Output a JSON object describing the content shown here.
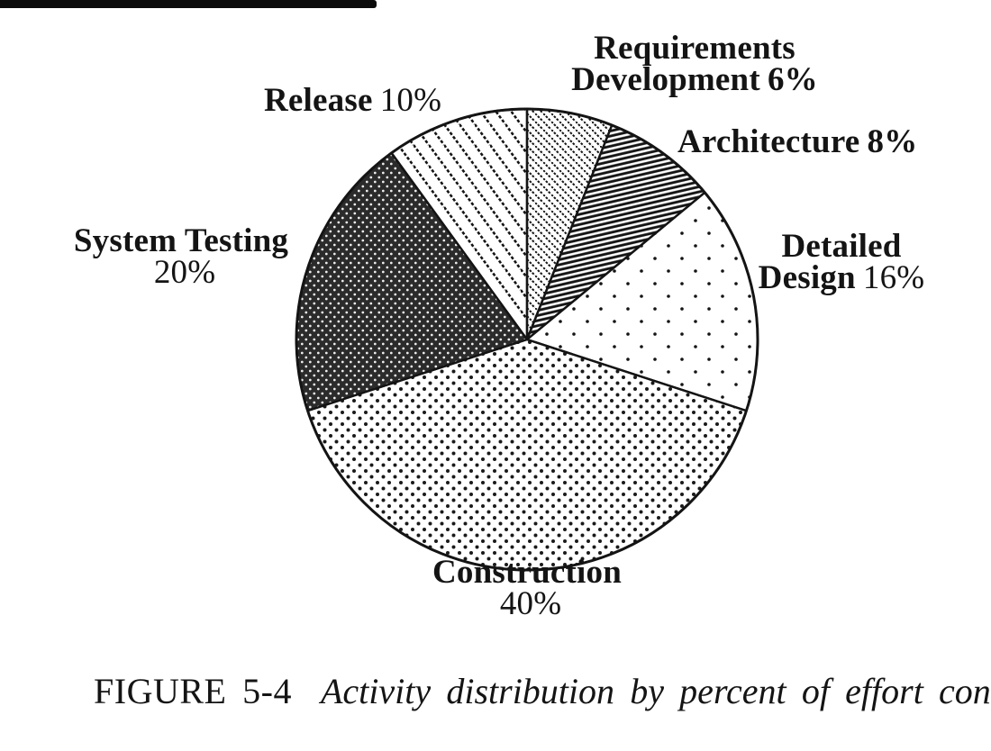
{
  "figure": {
    "caption_label": "FIGURE 5-4",
    "caption_text": "Activity distribution by percent of effort consumed."
  },
  "chart_data": {
    "type": "pie",
    "title": "Activity distribution by percent of effort consumed",
    "unit": "percent of effort",
    "start_angle_deg": -90,
    "direction": "clockwise",
    "total": 100,
    "segments": [
      {
        "id": "requirements-development",
        "label": "Requirements Development",
        "value": 6,
        "pct": "6%",
        "pattern": "diagonal-thin"
      },
      {
        "id": "architecture",
        "label": "Architecture",
        "value": 8,
        "pct": "8%",
        "pattern": "dense-stripes"
      },
      {
        "id": "detailed-design",
        "label": "Detailed Design",
        "value": 16,
        "pct": "16%",
        "pattern": "sparse-dots"
      },
      {
        "id": "construction",
        "label": "Construction",
        "value": 40,
        "pct": "40%",
        "pattern": "medium-dots"
      },
      {
        "id": "system-testing",
        "label": "System Testing",
        "value": 20,
        "pct": "20%",
        "pattern": "dark-crosshatch"
      },
      {
        "id": "release",
        "label": "Release",
        "value": 10,
        "pct": "10%",
        "pattern": "diagonal-wide"
      }
    ]
  },
  "labels": {
    "requirements": {
      "line1": "Requirements",
      "line2": "Development"
    },
    "architecture": {
      "name": "Architecture"
    },
    "detailed_design": {
      "line1": "Detailed",
      "line2": "Design"
    },
    "construction": {
      "name": "Construction"
    },
    "system_testing": {
      "name": "System Testing"
    },
    "release": {
      "name": "Release"
    }
  },
  "colors": {
    "ink": "#141414",
    "paper": "#ffffff"
  }
}
